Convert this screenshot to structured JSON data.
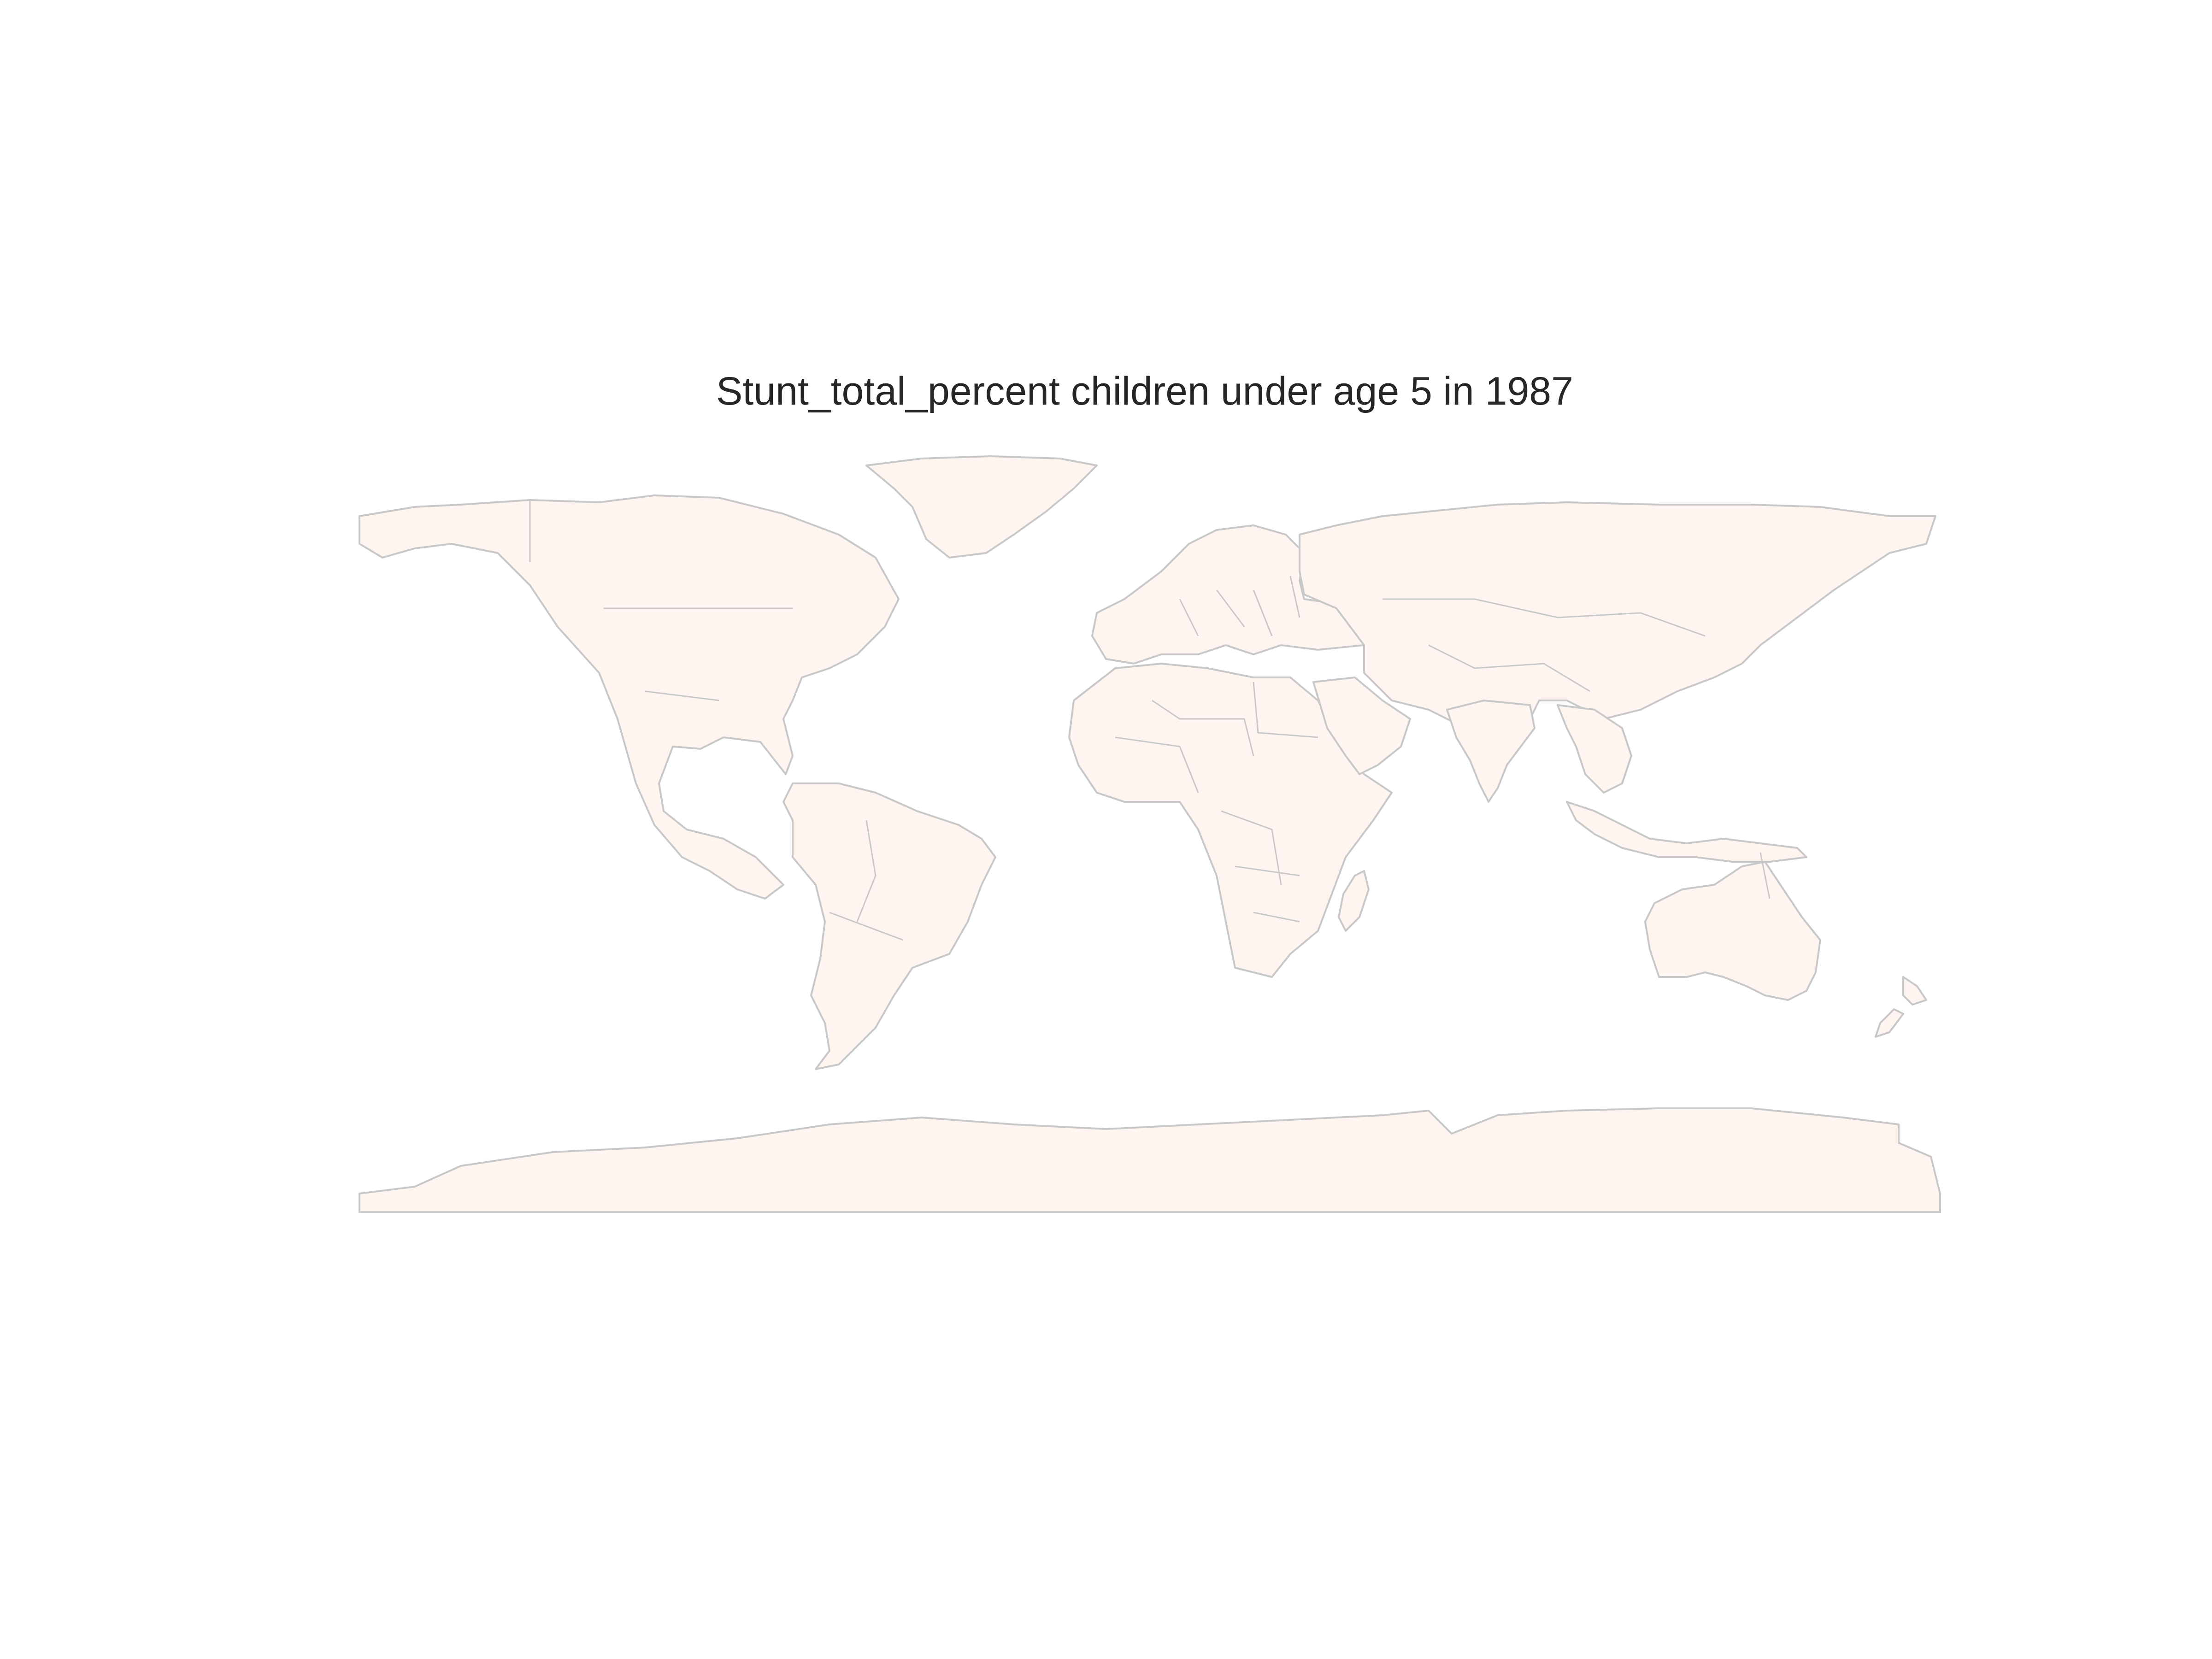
{
  "title": "Stunt_total_percent children under age 5 in 1987",
  "colors": {
    "land_fill": "#fff5f0",
    "border_stroke": "#c8c8c8",
    "title_text": "#262626",
    "background": "#ffffff"
  },
  "map": {
    "projection": "equirectangular",
    "legend": "none",
    "regions": [
      "north-america",
      "greenland",
      "south-america",
      "europe",
      "africa",
      "madagascar",
      "asia",
      "arabian-peninsula",
      "india",
      "southeast-asia",
      "indonesia",
      "australia",
      "new-zealand",
      "antarctica"
    ]
  }
}
